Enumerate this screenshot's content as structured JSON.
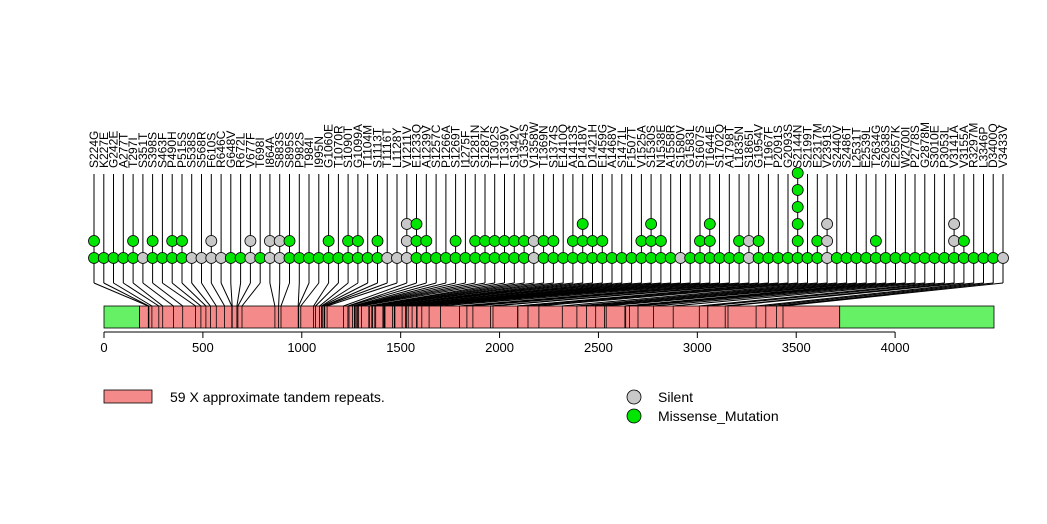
{
  "chart_data": {
    "type": "lollipop",
    "x_range": [
      0,
      4500
    ],
    "x_ticks": [
      0,
      500,
      1000,
      1500,
      2000,
      2500,
      3000,
      3500,
      4000
    ],
    "domains": [
      {
        "start": 0,
        "end": 180,
        "kind": "green"
      },
      {
        "start": 180,
        "end": 3720,
        "kind": "repeat"
      },
      {
        "start": 3720,
        "end": 4500,
        "kind": "green"
      }
    ],
    "domain_colors": {
      "repeat": "#F48A8A",
      "green": "#66F066"
    },
    "status_colors": {
      "Silent": "#C8C8C8",
      "Missense_Mutation": "#00E600"
    },
    "legend": {
      "domains": [
        {
          "label": "59 X approximate tandem repeats.",
          "color": "#F48A8A"
        }
      ],
      "statuses": [
        {
          "label": "Silent",
          "color": "#C8C8C8"
        },
        {
          "label": "Missense_Mutation",
          "color": "#00E600"
        }
      ]
    },
    "mutations": [
      {
        "label": "S224G",
        "pos": 224,
        "stack": [
          "M",
          "M"
        ]
      },
      {
        "label": "K227E",
        "pos": 227,
        "stack": [
          "M"
        ]
      },
      {
        "label": "G242E",
        "pos": 242,
        "stack": [
          "M"
        ]
      },
      {
        "label": "A277T",
        "pos": 277,
        "stack": [
          "M"
        ]
      },
      {
        "label": "T297I",
        "pos": 297,
        "stack": [
          "M",
          "M"
        ]
      },
      {
        "label": "S351T",
        "pos": 351,
        "stack": [
          "S"
        ]
      },
      {
        "label": "S398S",
        "pos": 398,
        "stack": [
          "M",
          "M"
        ]
      },
      {
        "label": "S463F",
        "pos": 463,
        "stack": [
          "M"
        ]
      },
      {
        "label": "P490H",
        "pos": 490,
        "stack": [
          "M",
          "M"
        ]
      },
      {
        "label": "P515S",
        "pos": 515,
        "stack": [
          "M",
          "M"
        ]
      },
      {
        "label": "S538S",
        "pos": 538,
        "stack": [
          "S"
        ]
      },
      {
        "label": "S568R",
        "pos": 568,
        "stack": [
          "S"
        ]
      },
      {
        "label": "F610S",
        "pos": 610,
        "stack": [
          "S",
          "S"
        ]
      },
      {
        "label": "R646C",
        "pos": 646,
        "stack": [
          "S"
        ]
      },
      {
        "label": "G648V",
        "pos": 648,
        "stack": [
          "M"
        ]
      },
      {
        "label": "R672L",
        "pos": 672,
        "stack": [
          "M"
        ]
      },
      {
        "label": "V677F",
        "pos": 677,
        "stack": [
          "S",
          "S"
        ]
      },
      {
        "label": "T698I",
        "pos": 698,
        "stack": [
          "M"
        ]
      },
      {
        "label": "I864A",
        "pos": 864,
        "stack": [
          "S",
          "S"
        ]
      },
      {
        "label": "S883S",
        "pos": 883,
        "stack": [
          "S",
          "S"
        ]
      },
      {
        "label": "S895S",
        "pos": 895,
        "stack": [
          "M",
          "M"
        ]
      },
      {
        "label": "P982S",
        "pos": 982,
        "stack": [
          "M"
        ]
      },
      {
        "label": "T984I",
        "pos": 984,
        "stack": [
          "M"
        ]
      },
      {
        "label": "I995N",
        "pos": 995,
        "stack": [
          "M"
        ]
      },
      {
        "label": "G1060E",
        "pos": 1060,
        "stack": [
          "M",
          "M"
        ]
      },
      {
        "label": "T1070R",
        "pos": 1070,
        "stack": [
          "M"
        ]
      },
      {
        "label": "S1090T",
        "pos": 1090,
        "stack": [
          "M",
          "M"
        ]
      },
      {
        "label": "G1099A",
        "pos": 1099,
        "stack": [
          "M",
          "M"
        ]
      },
      {
        "label": "T1104M",
        "pos": 1104,
        "stack": [
          "M"
        ]
      },
      {
        "label": "S1113T",
        "pos": 1113,
        "stack": [
          "M",
          "M"
        ]
      },
      {
        "label": "T1116T",
        "pos": 1116,
        "stack": [
          "S"
        ]
      },
      {
        "label": "L1128Y",
        "pos": 1128,
        "stack": [
          "S"
        ]
      },
      {
        "label": "V1211V",
        "pos": 1211,
        "stack": [
          "S",
          "S",
          "S"
        ]
      },
      {
        "label": "E1233Q",
        "pos": 1233,
        "stack": [
          "M",
          "M",
          "M"
        ]
      },
      {
        "label": "A1239V",
        "pos": 1239,
        "stack": [
          "M",
          "M"
        ]
      },
      {
        "label": "S1257C",
        "pos": 1257,
        "stack": [
          "M"
        ]
      },
      {
        "label": "P1266A",
        "pos": 1266,
        "stack": [
          "M"
        ]
      },
      {
        "label": "S1269T",
        "pos": 1269,
        "stack": [
          "M",
          "M"
        ]
      },
      {
        "label": "I1275F",
        "pos": 1275,
        "stack": [
          "M"
        ]
      },
      {
        "label": "S1281N",
        "pos": 1281,
        "stack": [
          "M",
          "M"
        ]
      },
      {
        "label": "S1287K",
        "pos": 1287,
        "stack": [
          "M",
          "M"
        ]
      },
      {
        "label": "T1302S",
        "pos": 1302,
        "stack": [
          "M",
          "M"
        ]
      },
      {
        "label": "T1339V",
        "pos": 1339,
        "stack": [
          "M",
          "M"
        ]
      },
      {
        "label": "S1342V",
        "pos": 1342,
        "stack": [
          "M",
          "M"
        ]
      },
      {
        "label": "G1354S",
        "pos": 1354,
        "stack": [
          "M",
          "M"
        ]
      },
      {
        "label": "V1358W",
        "pos": 1358,
        "stack": [
          "S",
          "S"
        ]
      },
      {
        "label": "T1369N",
        "pos": 1369,
        "stack": [
          "M",
          "M"
        ]
      },
      {
        "label": "S1374S",
        "pos": 1374,
        "stack": [
          "M",
          "M"
        ]
      },
      {
        "label": "E1410Q",
        "pos": 1410,
        "stack": [
          "M"
        ]
      },
      {
        "label": "A1413S",
        "pos": 1413,
        "stack": [
          "M",
          "M"
        ]
      },
      {
        "label": "P1418V",
        "pos": 1418,
        "stack": [
          "M",
          "M",
          "M"
        ]
      },
      {
        "label": "D1421H",
        "pos": 1421,
        "stack": [
          "M",
          "M"
        ]
      },
      {
        "label": "E1459G",
        "pos": 1459,
        "stack": [
          "M",
          "M"
        ]
      },
      {
        "label": "A1468V",
        "pos": 1468,
        "stack": [
          "M"
        ]
      },
      {
        "label": "S1471L",
        "pos": 1471,
        "stack": [
          "M"
        ]
      },
      {
        "label": "F1507T",
        "pos": 1507,
        "stack": [
          "M"
        ]
      },
      {
        "label": "V1525A",
        "pos": 1525,
        "stack": [
          "M",
          "M"
        ]
      },
      {
        "label": "S1530S",
        "pos": 1530,
        "stack": [
          "M",
          "M",
          "M"
        ]
      },
      {
        "label": "N1538E",
        "pos": 1538,
        "stack": [
          "M",
          "M"
        ]
      },
      {
        "label": "A1558R",
        "pos": 1558,
        "stack": [
          "M"
        ]
      },
      {
        "label": "S1580V",
        "pos": 1580,
        "stack": [
          "S"
        ]
      },
      {
        "label": "G1583L",
        "pos": 1583,
        "stack": [
          "M"
        ]
      },
      {
        "label": "S1607S",
        "pos": 1607,
        "stack": [
          "M",
          "M"
        ]
      },
      {
        "label": "T1644E",
        "pos": 1644,
        "stack": [
          "M",
          "M",
          "M"
        ]
      },
      {
        "label": "S1702Q",
        "pos": 1702,
        "stack": [
          "M"
        ]
      },
      {
        "label": "A1798T",
        "pos": 1798,
        "stack": [
          "M"
        ]
      },
      {
        "label": "L1835N",
        "pos": 1835,
        "stack": [
          "M",
          "M"
        ]
      },
      {
        "label": "S1865I",
        "pos": 1865,
        "stack": [
          "S",
          "S"
        ]
      },
      {
        "label": "G1954V",
        "pos": 1954,
        "stack": [
          "M",
          "M"
        ]
      },
      {
        "label": "T1967F",
        "pos": 1967,
        "stack": [
          "M"
        ]
      },
      {
        "label": "P2091S",
        "pos": 2091,
        "stack": [
          "M"
        ]
      },
      {
        "label": "G2093S",
        "pos": 2093,
        "stack": [
          "M"
        ]
      },
      {
        "label": "S2144N",
        "pos": 2144,
        "stack": [
          "M",
          "M",
          "M",
          "M",
          "M",
          "M"
        ]
      },
      {
        "label": "S2199T",
        "pos": 2199,
        "stack": [
          "M"
        ]
      },
      {
        "label": "E2317M",
        "pos": 2317,
        "stack": [
          "M",
          "M"
        ]
      },
      {
        "label": "V2391S",
        "pos": 2391,
        "stack": [
          "S",
          "S",
          "S"
        ]
      },
      {
        "label": "S2440V",
        "pos": 2440,
        "stack": [
          "M"
        ]
      },
      {
        "label": "S2486T",
        "pos": 2486,
        "stack": [
          "M"
        ]
      },
      {
        "label": "L2531T",
        "pos": 2531,
        "stack": [
          "M"
        ]
      },
      {
        "label": "E2539L",
        "pos": 2539,
        "stack": [
          "M"
        ]
      },
      {
        "label": "T2634G",
        "pos": 2634,
        "stack": [
          "M",
          "M"
        ]
      },
      {
        "label": "S2638S",
        "pos": 2638,
        "stack": [
          "M"
        ]
      },
      {
        "label": "E2657K",
        "pos": 2657,
        "stack": [
          "M"
        ]
      },
      {
        "label": "W2700I",
        "pos": 2700,
        "stack": [
          "M"
        ]
      },
      {
        "label": "P2778S",
        "pos": 2778,
        "stack": [
          "M"
        ]
      },
      {
        "label": "G2878M",
        "pos": 2878,
        "stack": [
          "M"
        ]
      },
      {
        "label": "S3010E",
        "pos": 3010,
        "stack": [
          "M"
        ]
      },
      {
        "label": "P3053L",
        "pos": 3053,
        "stack": [
          "M"
        ]
      },
      {
        "label": "V3141A",
        "pos": 3141,
        "stack": [
          "M",
          "S",
          "S"
        ]
      },
      {
        "label": "V3155A",
        "pos": 3155,
        "stack": [
          "M",
          "M"
        ]
      },
      {
        "label": "R3297M",
        "pos": 3297,
        "stack": [
          "M"
        ]
      },
      {
        "label": "L3346P",
        "pos": 3346,
        "stack": [
          "M"
        ]
      },
      {
        "label": "D3400Q",
        "pos": 3400,
        "stack": [
          "M"
        ]
      },
      {
        "label": "V3433V",
        "pos": 3433,
        "stack": [
          "S"
        ]
      }
    ]
  }
}
